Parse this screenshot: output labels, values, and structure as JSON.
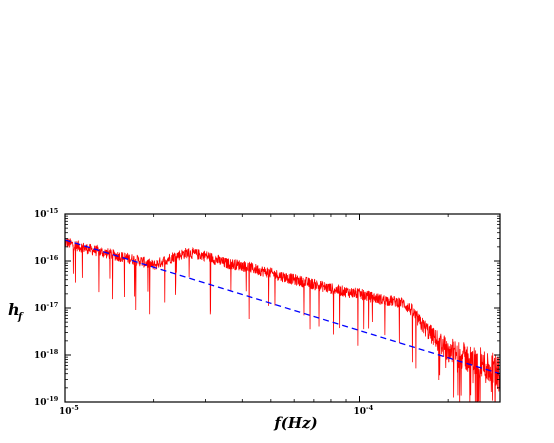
{
  "chart_data": {
    "type": "line",
    "title": "",
    "xlabel": "f(Hz)",
    "ylabel_main": "h",
    "ylabel_sub": "f",
    "x_scale": "log",
    "y_scale": "log",
    "xlim": [
      1e-05,
      0.0003
    ],
    "ylim": [
      1e-19,
      1e-15
    ],
    "x_ticks": [
      {
        "value": 1e-05,
        "mantissa": "10",
        "exponent": "-5"
      },
      {
        "value": 0.0001,
        "mantissa": "10",
        "exponent": "-4"
      }
    ],
    "y_ticks": [
      {
        "value": 1e-15,
        "mantissa": "10",
        "exponent": "-15"
      },
      {
        "value": 1e-16,
        "mantissa": "10",
        "exponent": "-16"
      },
      {
        "value": 1e-17,
        "mantissa": "10",
        "exponent": "-17"
      },
      {
        "value": 1e-18,
        "mantissa": "10",
        "exponent": "-18"
      },
      {
        "value": 1e-19,
        "mantissa": "10",
        "exponent": "-19"
      }
    ],
    "grid": false,
    "legend": "none",
    "series": [
      {
        "style": "solid",
        "color": "#ff0000",
        "noisy": true,
        "x": [
          1e-05,
          1.2e-05,
          1.5e-05,
          1.8e-05,
          2e-05,
          2.3e-05,
          2.6e-05,
          3e-05,
          3.5e-05,
          4e-05,
          5e-05,
          6e-05,
          7e-05,
          8e-05,
          9e-05,
          0.0001,
          0.00011,
          0.00012,
          0.00013,
          0.00014,
          0.00015,
          0.00016,
          0.00018,
          0.0002,
          0.00022,
          0.00025,
          0.00028,
          0.0003
        ],
        "y": [
          2.5e-16,
          1.8e-16,
          1.3e-16,
          1e-16,
          8e-17,
          1.2e-16,
          1.5e-16,
          1.3e-16,
          9e-17,
          8e-17,
          5.5e-17,
          4e-17,
          3.2e-17,
          2.6e-17,
          2.2e-17,
          2e-17,
          1.7e-17,
          1.5e-17,
          1.4e-17,
          1.3e-17,
          9e-18,
          5e-18,
          2.3e-18,
          1.3e-18,
          1e-18,
          7e-19,
          5e-19,
          4e-19
        ]
      },
      {
        "style": "dashed",
        "color": "#0000ff",
        "x": [
          1e-05,
          0.0003
        ],
        "y": [
          2.8e-16,
          4e-19
        ]
      }
    ]
  }
}
